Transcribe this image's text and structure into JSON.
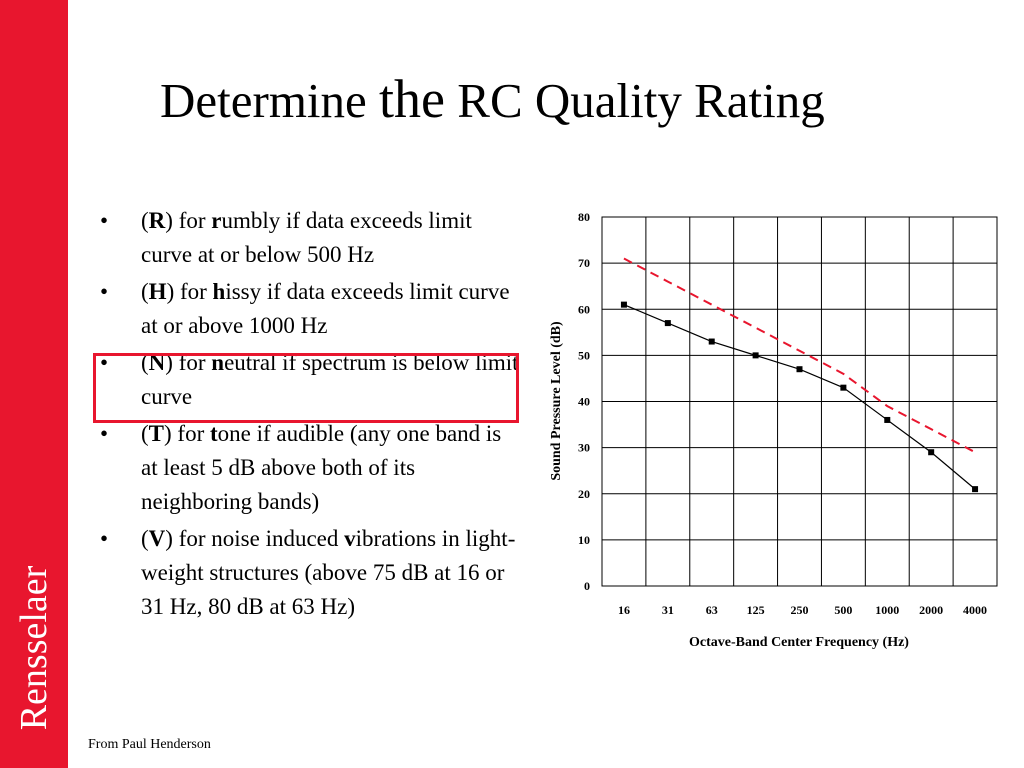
{
  "slide": {
    "title_parts": [
      "Determine ",
      "the",
      " RC Quality Rating"
    ],
    "brand": "Rensselaer",
    "credit": "From Paul Henderson",
    "accent_color": "#e8162e"
  },
  "bullets": [
    {
      "bullet": "•",
      "open": "(",
      "letter": "R",
      "mid": ") for ",
      "bold_initial": "r",
      "rest": "umbly if data exceeds limit curve at or below 500 Hz"
    },
    {
      "bullet": "•",
      "open": "(",
      "letter": "H",
      "mid": ") for ",
      "bold_initial": "h",
      "rest": "issy if data exceeds limit curve at or above 1000 Hz"
    },
    {
      "bullet": "•",
      "open": "(",
      "letter": "N",
      "mid": ") for ",
      "bold_initial": "n",
      "rest": "eutral if spectrum is below limit curve"
    },
    {
      "bullet": "•",
      "open": "(",
      "letter": "T",
      "mid": ") for ",
      "bold_initial": "t",
      "rest": "one if audible (any one band is at least 5 dB above both of its neighboring bands)"
    },
    {
      "bullet": "•",
      "open": "(",
      "letter": "V",
      "mid": ") for noise induced ",
      "bold_initial": "v",
      "rest": "ibrations in light-weight structures (above 75 dB at 16 or 31 Hz, 80 dB at 63 Hz)"
    }
  ],
  "chart_data": {
    "type": "line",
    "categories": [
      "16",
      "31",
      "63",
      "125",
      "250",
      "500",
      "1000",
      "2000",
      "4000"
    ],
    "xlabel": "Octave-Band Center Frequency (Hz)",
    "ylabel": "Sound Pressure Level (dB)",
    "ylim": [
      0,
      80
    ],
    "yticks": [
      0,
      10,
      20,
      30,
      40,
      50,
      60,
      70,
      80
    ],
    "grid": true,
    "series": [
      {
        "style": "solid-with-square-markers",
        "color": "#000000",
        "values": [
          61,
          57,
          53,
          50,
          47,
          43,
          36,
          29,
          21
        ]
      },
      {
        "style": "dashed",
        "color": "#e8162e",
        "values": [
          71,
          66,
          61,
          56,
          51,
          46,
          39,
          34,
          29
        ]
      }
    ]
  }
}
